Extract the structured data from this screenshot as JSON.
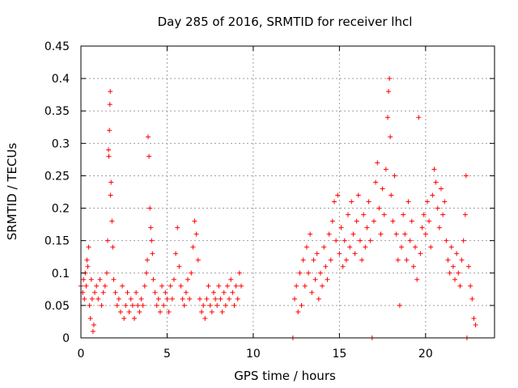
{
  "colors": {
    "marker": "#ff0000",
    "grid": "#a0a0a0",
    "axis": "#000000",
    "background": "#ffffff"
  },
  "chart_data": {
    "type": "scatter",
    "title": "Day 285 of 2016, SRMTID for receiver lhcl",
    "xlabel": "GPS time / hours",
    "ylabel": "SRMTID / TECUs",
    "xlim": [
      0,
      24
    ],
    "ylim": [
      0,
      0.45
    ],
    "xticks": [
      0,
      5,
      10,
      15,
      20
    ],
    "yticks": [
      0,
      0.05,
      0.1,
      0.15,
      0.2,
      0.25,
      0.3,
      0.35,
      0.4,
      0.45
    ],
    "xtick_labels": [
      "0",
      "5",
      "10",
      "15",
      "20"
    ],
    "ytick_labels": [
      "0",
      "0.05",
      "0.1",
      "0.15",
      "0.2",
      "0.25",
      "0.3",
      "0.35",
      "0.4",
      "0.45"
    ],
    "grid": true,
    "marker": "+",
    "series": [
      {
        "name": "SRMTID",
        "points": [
          [
            0.0,
            0.08
          ],
          [
            0.1,
            0.07
          ],
          [
            0.15,
            0.09
          ],
          [
            0.2,
            0.06
          ],
          [
            0.25,
            0.1
          ],
          [
            0.3,
            0.08
          ],
          [
            0.35,
            0.12
          ],
          [
            0.4,
            0.11
          ],
          [
            0.45,
            0.14
          ],
          [
            0.5,
            0.05
          ],
          [
            0.55,
            0.03
          ],
          [
            0.6,
            0.09
          ],
          [
            0.65,
            0.06
          ],
          [
            0.7,
            0.01
          ],
          [
            0.75,
            0.02
          ],
          [
            0.8,
            0.07
          ],
          [
            0.9,
            0.08
          ],
          [
            1.0,
            0.06
          ],
          [
            1.1,
            0.09
          ],
          [
            1.2,
            0.05
          ],
          [
            1.3,
            0.07
          ],
          [
            1.4,
            0.08
          ],
          [
            1.5,
            0.1
          ],
          [
            1.55,
            0.15
          ],
          [
            1.6,
            0.29
          ],
          [
            1.62,
            0.28
          ],
          [
            1.65,
            0.32
          ],
          [
            1.68,
            0.36
          ],
          [
            1.7,
            0.38
          ],
          [
            1.72,
            0.22
          ],
          [
            1.75,
            0.24
          ],
          [
            1.8,
            0.18
          ],
          [
            1.85,
            0.14
          ],
          [
            1.9,
            0.09
          ],
          [
            2.0,
            0.07
          ],
          [
            2.1,
            0.05
          ],
          [
            2.2,
            0.06
          ],
          [
            2.3,
            0.04
          ],
          [
            2.4,
            0.08
          ],
          [
            2.5,
            0.03
          ],
          [
            2.6,
            0.05
          ],
          [
            2.7,
            0.07
          ],
          [
            2.8,
            0.04
          ],
          [
            2.9,
            0.06
          ],
          [
            3.0,
            0.05
          ],
          [
            3.1,
            0.03
          ],
          [
            3.2,
            0.07
          ],
          [
            3.3,
            0.05
          ],
          [
            3.4,
            0.04
          ],
          [
            3.5,
            0.06
          ],
          [
            3.6,
            0.05
          ],
          [
            3.7,
            0.08
          ],
          [
            3.8,
            0.1
          ],
          [
            3.85,
            0.12
          ],
          [
            3.9,
            0.31
          ],
          [
            3.95,
            0.28
          ],
          [
            4.0,
            0.2
          ],
          [
            4.05,
            0.17
          ],
          [
            4.1,
            0.15
          ],
          [
            4.15,
            0.13
          ],
          [
            4.2,
            0.09
          ],
          [
            4.3,
            0.07
          ],
          [
            4.4,
            0.05
          ],
          [
            4.5,
            0.06
          ],
          [
            4.6,
            0.04
          ],
          [
            4.7,
            0.08
          ],
          [
            4.8,
            0.05
          ],
          [
            4.9,
            0.07
          ],
          [
            5.0,
            0.06
          ],
          [
            5.1,
            0.04
          ],
          [
            5.2,
            0.08
          ],
          [
            5.3,
            0.06
          ],
          [
            5.4,
            0.09
          ],
          [
            5.5,
            0.13
          ],
          [
            5.6,
            0.17
          ],
          [
            5.7,
            0.11
          ],
          [
            5.8,
            0.08
          ],
          [
            5.9,
            0.06
          ],
          [
            6.0,
            0.05
          ],
          [
            6.1,
            0.07
          ],
          [
            6.2,
            0.09
          ],
          [
            6.3,
            0.06
          ],
          [
            6.4,
            0.1
          ],
          [
            6.5,
            0.14
          ],
          [
            6.6,
            0.18
          ],
          [
            6.7,
            0.16
          ],
          [
            6.8,
            0.12
          ],
          [
            6.9,
            0.06
          ],
          [
            7.0,
            0.04
          ],
          [
            7.1,
            0.05
          ],
          [
            7.2,
            0.03
          ],
          [
            7.3,
            0.06
          ],
          [
            7.4,
            0.08
          ],
          [
            7.5,
            0.05
          ],
          [
            7.6,
            0.04
          ],
          [
            7.7,
            0.07
          ],
          [
            7.8,
            0.06
          ],
          [
            7.9,
            0.05
          ],
          [
            8.0,
            0.08
          ],
          [
            8.1,
            0.06
          ],
          [
            8.2,
            0.04
          ],
          [
            8.3,
            0.07
          ],
          [
            8.4,
            0.05
          ],
          [
            8.5,
            0.08
          ],
          [
            8.6,
            0.06
          ],
          [
            8.7,
            0.09
          ],
          [
            8.8,
            0.07
          ],
          [
            8.9,
            0.05
          ],
          [
            9.0,
            0.08
          ],
          [
            9.1,
            0.06
          ],
          [
            9.2,
            0.1
          ],
          [
            9.3,
            0.08
          ],
          [
            12.3,
            0.0
          ],
          [
            12.4,
            0.06
          ],
          [
            12.5,
            0.08
          ],
          [
            12.6,
            0.04
          ],
          [
            12.7,
            0.1
          ],
          [
            12.8,
            0.05
          ],
          [
            12.9,
            0.12
          ],
          [
            13.0,
            0.08
          ],
          [
            13.1,
            0.14
          ],
          [
            13.2,
            0.1
          ],
          [
            13.3,
            0.16
          ],
          [
            13.4,
            0.07
          ],
          [
            13.5,
            0.12
          ],
          [
            13.6,
            0.09
          ],
          [
            13.7,
            0.13
          ],
          [
            13.8,
            0.06
          ],
          [
            13.9,
            0.1
          ],
          [
            14.0,
            0.08
          ],
          [
            14.1,
            0.14
          ],
          [
            14.2,
            0.11
          ],
          [
            14.3,
            0.09
          ],
          [
            14.4,
            0.16
          ],
          [
            14.5,
            0.12
          ],
          [
            14.6,
            0.18
          ],
          [
            14.7,
            0.21
          ],
          [
            14.8,
            0.15
          ],
          [
            14.9,
            0.22
          ],
          [
            15.0,
            0.13
          ],
          [
            15.1,
            0.17
          ],
          [
            15.2,
            0.11
          ],
          [
            15.3,
            0.15
          ],
          [
            15.4,
            0.12
          ],
          [
            15.5,
            0.19
          ],
          [
            15.6,
            0.14
          ],
          [
            15.7,
            0.21
          ],
          [
            15.8,
            0.16
          ],
          [
            15.9,
            0.13
          ],
          [
            16.0,
            0.18
          ],
          [
            16.1,
            0.22
          ],
          [
            16.2,
            0.15
          ],
          [
            16.3,
            0.12
          ],
          [
            16.4,
            0.19
          ],
          [
            16.5,
            0.14
          ],
          [
            16.6,
            0.17
          ],
          [
            16.7,
            0.21
          ],
          [
            16.8,
            0.15
          ],
          [
            16.9,
            0.0
          ],
          [
            17.0,
            0.18
          ],
          [
            17.1,
            0.24
          ],
          [
            17.2,
            0.27
          ],
          [
            17.3,
            0.2
          ],
          [
            17.4,
            0.16
          ],
          [
            17.5,
            0.23
          ],
          [
            17.6,
            0.19
          ],
          [
            17.7,
            0.26
          ],
          [
            17.8,
            0.34
          ],
          [
            17.85,
            0.38
          ],
          [
            17.9,
            0.4
          ],
          [
            17.95,
            0.31
          ],
          [
            18.0,
            0.22
          ],
          [
            18.1,
            0.18
          ],
          [
            18.2,
            0.25
          ],
          [
            18.3,
            0.16
          ],
          [
            18.4,
            0.12
          ],
          [
            18.5,
            0.05
          ],
          [
            18.6,
            0.14
          ],
          [
            18.7,
            0.19
          ],
          [
            18.8,
            0.16
          ],
          [
            18.9,
            0.12
          ],
          [
            19.0,
            0.21
          ],
          [
            19.1,
            0.15
          ],
          [
            19.2,
            0.18
          ],
          [
            19.3,
            0.11
          ],
          [
            19.4,
            0.14
          ],
          [
            19.5,
            0.09
          ],
          [
            19.6,
            0.34
          ],
          [
            19.7,
            0.13
          ],
          [
            19.8,
            0.17
          ],
          [
            19.9,
            0.19
          ],
          [
            20.0,
            0.16
          ],
          [
            20.1,
            0.21
          ],
          [
            20.2,
            0.18
          ],
          [
            20.3,
            0.14
          ],
          [
            20.4,
            0.22
          ],
          [
            20.5,
            0.26
          ],
          [
            20.6,
            0.24
          ],
          [
            20.7,
            0.2
          ],
          [
            20.8,
            0.17
          ],
          [
            20.9,
            0.23
          ],
          [
            21.0,
            0.19
          ],
          [
            21.1,
            0.21
          ],
          [
            21.2,
            0.15
          ],
          [
            21.3,
            0.12
          ],
          [
            21.4,
            0.1
          ],
          [
            21.5,
            0.14
          ],
          [
            21.6,
            0.11
          ],
          [
            21.7,
            0.09
          ],
          [
            21.8,
            0.13
          ],
          [
            21.9,
            0.1
          ],
          [
            22.0,
            0.08
          ],
          [
            22.1,
            0.12
          ],
          [
            22.2,
            0.15
          ],
          [
            22.3,
            0.19
          ],
          [
            22.35,
            0.25
          ],
          [
            22.4,
            0.0
          ],
          [
            22.5,
            0.11
          ],
          [
            22.6,
            0.08
          ],
          [
            22.7,
            0.06
          ],
          [
            22.8,
            0.03
          ],
          [
            22.9,
            0.02
          ]
        ]
      }
    ]
  }
}
